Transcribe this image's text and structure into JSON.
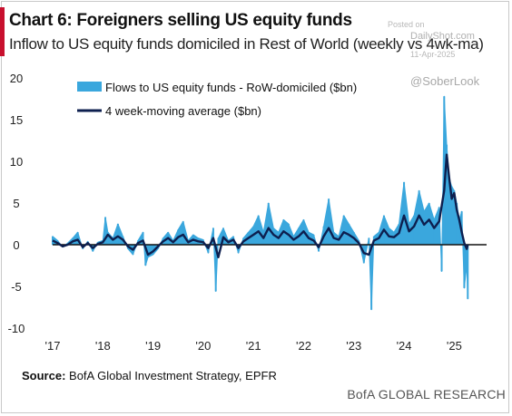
{
  "header": {
    "title": "Chart 6: Foreigners selling US equity funds",
    "subtitle": "Inflow to US equity funds domiciled in Rest of World (weekly vs 4wk-ma)"
  },
  "watermark": {
    "posted": "Posted on",
    "site": "DailyShot.com",
    "date": "11-Apr-2025",
    "handle": "@SoberLook"
  },
  "footer": {
    "source_label": "Source:",
    "source_text": " BofA Global Investment Strategy, EPFR",
    "brand": "BofA GLOBAL RESEARCH"
  },
  "colors": {
    "flows": "#3aa7dd",
    "ma": "#0d1f4f",
    "accent": "#c8102e"
  },
  "chart_data": {
    "type": "area",
    "xlabel": "",
    "ylabel": "",
    "ylim": [
      -10,
      20
    ],
    "yticks": [
      -10,
      -5,
      0,
      5,
      10,
      15,
      20
    ],
    "xlim": [
      2017.0,
      2025.5
    ],
    "xticks": [
      {
        "value": 2017,
        "label": "'17"
      },
      {
        "value": 2018,
        "label": "'18"
      },
      {
        "value": 2019,
        "label": "'19"
      },
      {
        "value": 2020,
        "label": "'20"
      },
      {
        "value": 2021,
        "label": "'21"
      },
      {
        "value": 2022,
        "label": "'22"
      },
      {
        "value": 2023,
        "label": "'23"
      },
      {
        "value": 2024,
        "label": "'24"
      },
      {
        "value": 2025,
        "label": "'25"
      }
    ],
    "legend": "top-left",
    "series": [
      {
        "name": "Flows to US equity funds - RoW-domiciled ($bn)",
        "kind": "area",
        "x": [
          2017.0,
          2017.1,
          2017.2,
          2017.3,
          2017.4,
          2017.5,
          2017.6,
          2017.7,
          2017.8,
          2017.9,
          2018.0,
          2018.05,
          2018.1,
          2018.2,
          2018.3,
          2018.4,
          2018.5,
          2018.6,
          2018.7,
          2018.8,
          2018.85,
          2018.9,
          2019.0,
          2019.1,
          2019.2,
          2019.3,
          2019.4,
          2019.5,
          2019.6,
          2019.7,
          2019.8,
          2019.9,
          2020.0,
          2020.1,
          2020.2,
          2020.25,
          2020.3,
          2020.4,
          2020.5,
          2020.6,
          2020.7,
          2020.8,
          2020.9,
          2021.0,
          2021.1,
          2021.2,
          2021.3,
          2021.4,
          2021.5,
          2021.6,
          2021.7,
          2021.8,
          2021.9,
          2022.0,
          2022.1,
          2022.2,
          2022.3,
          2022.4,
          2022.5,
          2022.6,
          2022.7,
          2022.8,
          2022.9,
          2023.0,
          2023.1,
          2023.2,
          2023.3,
          2023.35,
          2023.4,
          2023.5,
          2023.6,
          2023.7,
          2023.8,
          2023.9,
          2024.0,
          2024.1,
          2024.2,
          2024.3,
          2024.4,
          2024.5,
          2024.6,
          2024.7,
          2024.75,
          2024.8,
          2024.85,
          2024.9,
          2024.95,
          2025.0,
          2025.05,
          2025.1,
          2025.15,
          2025.2,
          2025.25,
          2025.27
        ],
        "values": [
          1.0,
          0.5,
          -0.3,
          0.2,
          0.8,
          1.5,
          -0.5,
          0.4,
          -0.8,
          0.3,
          0.5,
          3.3,
          1.5,
          0.8,
          2.5,
          1.0,
          -0.5,
          -1.2,
          0.5,
          1.5,
          -2.5,
          -1.5,
          -1.2,
          -0.5,
          0.8,
          1.5,
          0.5,
          1.8,
          2.8,
          0.5,
          1.2,
          0.8,
          0.6,
          -1.0,
          2.0,
          -5.6,
          0.8,
          2.0,
          0.5,
          1.0,
          -1.0,
          0.8,
          1.5,
          2.2,
          3.5,
          1.5,
          5.0,
          2.0,
          1.5,
          3.0,
          2.5,
          1.0,
          2.0,
          3.0,
          1.5,
          1.2,
          -0.8,
          2.2,
          5.5,
          1.5,
          1.0,
          3.5,
          2.5,
          1.5,
          0.5,
          -2.2,
          0.8,
          -7.8,
          1.0,
          1.5,
          3.5,
          2.0,
          1.5,
          2.5,
          7.5,
          2.5,
          3.5,
          6.5,
          4.0,
          5.0,
          3.0,
          4.5,
          -3.2,
          17.8,
          12.0,
          8.0,
          7.0,
          6.5,
          5.0,
          3.0,
          4.0,
          -5.2,
          -2.5,
          -6.5
        ]
      },
      {
        "name": "4 week-moving average ($bn)",
        "kind": "line",
        "x": [
          2017.0,
          2017.1,
          2017.2,
          2017.3,
          2017.4,
          2017.5,
          2017.6,
          2017.7,
          2017.8,
          2017.9,
          2018.0,
          2018.1,
          2018.2,
          2018.3,
          2018.4,
          2018.5,
          2018.6,
          2018.7,
          2018.8,
          2018.9,
          2019.0,
          2019.1,
          2019.2,
          2019.3,
          2019.4,
          2019.5,
          2019.6,
          2019.7,
          2019.8,
          2019.9,
          2020.0,
          2020.1,
          2020.2,
          2020.3,
          2020.4,
          2020.5,
          2020.6,
          2020.7,
          2020.8,
          2020.9,
          2021.0,
          2021.1,
          2021.2,
          2021.3,
          2021.4,
          2021.5,
          2021.6,
          2021.7,
          2021.8,
          2021.9,
          2022.0,
          2022.1,
          2022.2,
          2022.3,
          2022.4,
          2022.5,
          2022.6,
          2022.7,
          2022.8,
          2022.9,
          2023.0,
          2023.1,
          2023.2,
          2023.3,
          2023.4,
          2023.5,
          2023.6,
          2023.7,
          2023.8,
          2023.9,
          2024.0,
          2024.1,
          2024.2,
          2024.3,
          2024.4,
          2024.5,
          2024.6,
          2024.7,
          2024.8,
          2024.85,
          2024.9,
          2024.95,
          2025.0,
          2025.05,
          2025.1,
          2025.15,
          2025.2,
          2025.25,
          2025.27
        ],
        "values": [
          0.5,
          0.2,
          -0.2,
          0.0,
          0.4,
          0.6,
          -0.3,
          0.2,
          -0.4,
          0.1,
          0.3,
          1.2,
          0.6,
          1.0,
          0.6,
          -0.2,
          -0.6,
          0.2,
          0.5,
          -1.2,
          -0.8,
          -0.2,
          0.4,
          0.8,
          0.3,
          0.9,
          1.2,
          0.3,
          0.6,
          0.4,
          0.3,
          -0.4,
          0.8,
          -1.5,
          0.9,
          0.3,
          0.6,
          -0.4,
          0.4,
          0.8,
          1.2,
          1.6,
          0.8,
          2.0,
          1.2,
          0.8,
          1.6,
          1.2,
          0.6,
          1.0,
          1.6,
          0.8,
          0.5,
          -0.3,
          1.0,
          2.0,
          0.8,
          0.6,
          1.5,
          1.2,
          0.8,
          0.2,
          -1.0,
          -1.2,
          0.5,
          0.8,
          1.8,
          1.0,
          0.9,
          1.4,
          3.5,
          1.6,
          2.2,
          3.5,
          2.4,
          3.0,
          2.0,
          2.8,
          6.5,
          10.8,
          8.0,
          5.5,
          6.2,
          4.2,
          3.0,
          1.5,
          0.2,
          -0.5,
          0.0
        ]
      }
    ]
  }
}
